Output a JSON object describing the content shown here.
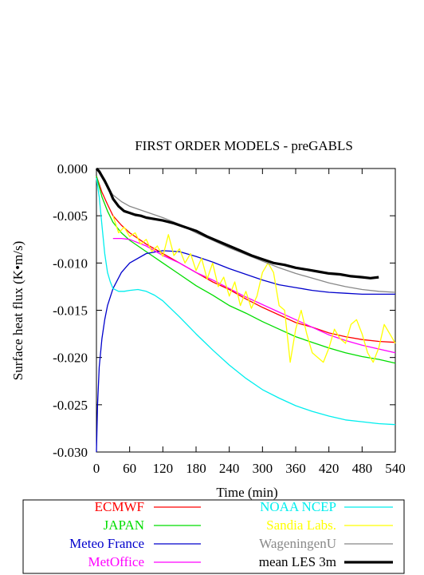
{
  "chart_data": {
    "type": "line",
    "title": "FIRST ORDER MODELS  - preGABLS",
    "xlabel": "Time (min)",
    "ylabel": "Surface heat flux (K•m/s)",
    "xlim": [
      0,
      540
    ],
    "ylim": [
      -0.03,
      0.0
    ],
    "xticks": [
      0,
      60,
      120,
      180,
      240,
      300,
      360,
      420,
      480,
      540
    ],
    "xtick_labels": [
      "0",
      "60",
      "120",
      "180",
      "240",
      "300",
      "360",
      "420",
      "480",
      "540"
    ],
    "yticks": [
      0.0,
      -0.005,
      -0.01,
      -0.015,
      -0.02,
      -0.025,
      -0.03
    ],
    "ytick_labels": [
      "0.000",
      "-0.005",
      "-0.010",
      "-0.015",
      "-0.020",
      "-0.025",
      "-0.030"
    ],
    "grid": false,
    "legend_position": "bottom",
    "series": [
      {
        "name": "ECMWF",
        "color": "#ff0000",
        "width": 1.3,
        "x": [
          0,
          10,
          20,
          30,
          45,
          60,
          90,
          120,
          150,
          180,
          210,
          240,
          270,
          300,
          330,
          360,
          390,
          420,
          450,
          480,
          510,
          540
        ],
        "y": [
          -0.0008,
          -0.0025,
          -0.0038,
          -0.005,
          -0.006,
          -0.0068,
          -0.008,
          -0.009,
          -0.01,
          -0.011,
          -0.012,
          -0.0128,
          -0.0138,
          -0.0147,
          -0.0155,
          -0.0163,
          -0.0168,
          -0.0174,
          -0.0178,
          -0.0181,
          -0.0183,
          -0.0184
        ]
      },
      {
        "name": "JAPAN",
        "color": "#00dd00",
        "width": 1.3,
        "x": [
          0,
          10,
          20,
          30,
          45,
          60,
          90,
          120,
          150,
          180,
          210,
          240,
          270,
          300,
          330,
          360,
          390,
          420,
          450,
          480,
          510,
          540
        ],
        "y": [
          -0.0008,
          -0.003,
          -0.0045,
          -0.0057,
          -0.0068,
          -0.0076,
          -0.0088,
          -0.01,
          -0.0112,
          -0.0124,
          -0.0134,
          -0.0145,
          -0.0153,
          -0.0162,
          -0.017,
          -0.0178,
          -0.0184,
          -0.019,
          -0.0195,
          -0.0199,
          -0.0202,
          -0.0206
        ]
      },
      {
        "name": "Meteo France",
        "color": "#0000cc",
        "width": 1.3,
        "x": [
          0,
          2,
          5,
          10,
          15,
          20,
          30,
          45,
          60,
          90,
          120,
          150,
          180,
          210,
          240,
          270,
          300,
          330,
          360,
          390,
          420,
          450,
          480,
          510,
          540
        ],
        "y": [
          -0.03,
          -0.025,
          -0.021,
          -0.018,
          -0.016,
          -0.0145,
          -0.0127,
          -0.011,
          -0.01,
          -0.009,
          -0.0087,
          -0.0088,
          -0.0093,
          -0.0099,
          -0.0106,
          -0.0112,
          -0.0118,
          -0.0123,
          -0.0126,
          -0.0129,
          -0.0131,
          -0.0132,
          -0.0133,
          -0.0133,
          -0.0133
        ]
      },
      {
        "name": "MetOffice",
        "color": "#ff00ff",
        "width": 1.3,
        "x": [
          30,
          45,
          60,
          90,
          120,
          150,
          180,
          210,
          240,
          270,
          300,
          330,
          360,
          390,
          420,
          450,
          480,
          510,
          540
        ],
        "y": [
          -0.0074,
          -0.0074,
          -0.0075,
          -0.0082,
          -0.0092,
          -0.01,
          -0.011,
          -0.0118,
          -0.0127,
          -0.0136,
          -0.0144,
          -0.0152,
          -0.016,
          -0.0168,
          -0.0176,
          -0.0182,
          -0.0187,
          -0.0191,
          -0.0195
        ]
      },
      {
        "name": "NOAA NCEP",
        "color": "#00eeee",
        "width": 1.3,
        "x": [
          0,
          5,
          10,
          15,
          20,
          25,
          30,
          40,
          50,
          60,
          75,
          90,
          105,
          120,
          150,
          180,
          210,
          240,
          270,
          300,
          330,
          360,
          390,
          420,
          450,
          480,
          510,
          540
        ],
        "y": [
          -0.001,
          -0.003,
          -0.006,
          -0.009,
          -0.011,
          -0.012,
          -0.0127,
          -0.013,
          -0.013,
          -0.0129,
          -0.0128,
          -0.013,
          -0.0134,
          -0.014,
          -0.0157,
          -0.0175,
          -0.0192,
          -0.0208,
          -0.0222,
          -0.0234,
          -0.0243,
          -0.0251,
          -0.0257,
          -0.0262,
          -0.0266,
          -0.0268,
          -0.027,
          -0.0271
        ]
      },
      {
        "name": "Sandia Labs.",
        "color": "#ffff00",
        "width": 1.3,
        "x": [
          30,
          40,
          50,
          60,
          70,
          80,
          90,
          100,
          110,
          120,
          130,
          140,
          150,
          160,
          170,
          180,
          190,
          200,
          210,
          220,
          230,
          240,
          250,
          260,
          270,
          280,
          290,
          300,
          310,
          320,
          330,
          340,
          350,
          360,
          370,
          380,
          390,
          400,
          410,
          420,
          430,
          440,
          450,
          460,
          470,
          480,
          490,
          500,
          510,
          520,
          530,
          540
        ],
        "y": [
          -0.005,
          -0.0068,
          -0.0062,
          -0.0072,
          -0.0068,
          -0.008,
          -0.0075,
          -0.0088,
          -0.0082,
          -0.0093,
          -0.007,
          -0.0092,
          -0.0085,
          -0.01,
          -0.009,
          -0.0108,
          -0.0095,
          -0.0117,
          -0.01,
          -0.0125,
          -0.0115,
          -0.0135,
          -0.012,
          -0.0145,
          -0.013,
          -0.0148,
          -0.0135,
          -0.011,
          -0.01,
          -0.011,
          -0.0145,
          -0.015,
          -0.0205,
          -0.017,
          -0.015,
          -0.0175,
          -0.0195,
          -0.02,
          -0.0205,
          -0.019,
          -0.017,
          -0.018,
          -0.0185,
          -0.0165,
          -0.016,
          -0.0175,
          -0.0195,
          -0.0205,
          -0.019,
          -0.0165,
          -0.0175,
          -0.0185
        ]
      },
      {
        "name": "WageningenU",
        "color": "#888888",
        "width": 1.3,
        "x": [
          0,
          10,
          20,
          30,
          45,
          60,
          90,
          120,
          150,
          180,
          210,
          240,
          270,
          300,
          330,
          360,
          390,
          420,
          450,
          480,
          510,
          540
        ],
        "y": [
          0.0,
          -0.001,
          -0.002,
          -0.0028,
          -0.0035,
          -0.004,
          -0.0046,
          -0.0052,
          -0.0059,
          -0.0068,
          -0.0076,
          -0.0084,
          -0.0091,
          -0.0098,
          -0.0105,
          -0.0111,
          -0.0116,
          -0.0121,
          -0.0125,
          -0.0128,
          -0.013,
          -0.0131
        ]
      },
      {
        "name": "mean LES 3m",
        "color": "#000000",
        "width": 3.2,
        "x": [
          0,
          5,
          10,
          15,
          20,
          25,
          30,
          40,
          50,
          60,
          70,
          80,
          90,
          100,
          120,
          140,
          160,
          180,
          200,
          220,
          240,
          260,
          280,
          300,
          320,
          340,
          360,
          380,
          400,
          420,
          440,
          460,
          480,
          495,
          510
        ],
        "y": [
          0.0,
          -0.0003,
          -0.0008,
          -0.0013,
          -0.0019,
          -0.0025,
          -0.0032,
          -0.004,
          -0.0045,
          -0.0047,
          -0.0049,
          -0.005,
          -0.0052,
          -0.0053,
          -0.0055,
          -0.0058,
          -0.0062,
          -0.0066,
          -0.0072,
          -0.0077,
          -0.0082,
          -0.0087,
          -0.0092,
          -0.0096,
          -0.01,
          -0.0102,
          -0.0105,
          -0.0107,
          -0.0109,
          -0.0111,
          -0.0112,
          -0.0114,
          -0.0115,
          -0.0116,
          -0.0115
        ]
      }
    ]
  }
}
